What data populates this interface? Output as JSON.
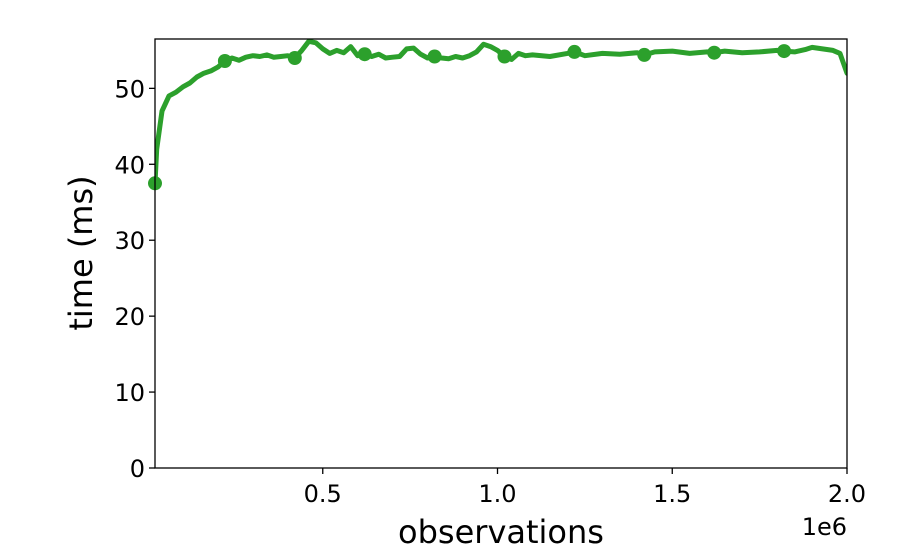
{
  "chart_data": {
    "type": "line",
    "title": "",
    "xlabel": "observations",
    "ylabel": "time (ms)",
    "x_offset_label": "1e6",
    "xlim": [
      20000,
      2000000
    ],
    "ylim": [
      0,
      56.5
    ],
    "grid": false,
    "legend": "none",
    "x_ticks": [
      {
        "value": 500000,
        "label": "0.5"
      },
      {
        "value": 1000000,
        "label": "1.0"
      },
      {
        "value": 1500000,
        "label": "1.5"
      },
      {
        "value": 2000000,
        "label": "2.0"
      }
    ],
    "y_ticks": [
      {
        "value": 0,
        "label": "0"
      },
      {
        "value": 10,
        "label": "10"
      },
      {
        "value": 20,
        "label": "20"
      },
      {
        "value": 30,
        "label": "30"
      },
      {
        "value": 40,
        "label": "40"
      },
      {
        "value": 50,
        "label": "50"
      }
    ],
    "series": [
      {
        "color": "#2ca02c",
        "x": [
          20000,
          25000,
          40000,
          60000,
          80000,
          100000,
          120000,
          140000,
          160000,
          180000,
          200000,
          220000,
          240000,
          260000,
          280000,
          300000,
          320000,
          340000,
          360000,
          380000,
          400000,
          420000,
          440000,
          460000,
          480000,
          500000,
          520000,
          540000,
          560000,
          580000,
          600000,
          620000,
          640000,
          660000,
          680000,
          700000,
          720000,
          740000,
          760000,
          780000,
          800000,
          820000,
          840000,
          860000,
          880000,
          900000,
          920000,
          940000,
          960000,
          980000,
          1000000,
          1020000,
          1040000,
          1060000,
          1080000,
          1100000,
          1150000,
          1200000,
          1220000,
          1250000,
          1300000,
          1350000,
          1400000,
          1420000,
          1450000,
          1500000,
          1550000,
          1600000,
          1620000,
          1650000,
          1700000,
          1750000,
          1800000,
          1820000,
          1850000,
          1880000,
          1900000,
          1930000,
          1960000,
          1980000,
          2000000
        ],
        "y": [
          37.5,
          42,
          47,
          49,
          49.5,
          50.2,
          50.7,
          51.5,
          52,
          52.3,
          52.8,
          53.6,
          54.0,
          53.7,
          54.1,
          54.3,
          54.2,
          54.4,
          54.1,
          54.2,
          54.3,
          54.0,
          55.0,
          56.2,
          56.0,
          55.2,
          54.6,
          55.0,
          54.7,
          55.5,
          54.3,
          54.5,
          54.2,
          54.5,
          54.0,
          54.1,
          54.2,
          55.2,
          55.3,
          54.5,
          54.0,
          54.2,
          54.0,
          53.9,
          54.2,
          54.0,
          54.3,
          54.8,
          55.8,
          55.5,
          55.0,
          54.2,
          53.8,
          54.6,
          54.3,
          54.4,
          54.2,
          54.6,
          54.8,
          54.3,
          54.6,
          54.5,
          54.7,
          54.4,
          54.8,
          54.9,
          54.6,
          54.8,
          54.7,
          54.9,
          54.7,
          54.8,
          55.0,
          54.9,
          54.8,
          55.1,
          55.4,
          55.2,
          55.0,
          54.6,
          52.0
        ]
      }
    ],
    "marker_x": [
      20000,
      220000,
      420000,
      620000,
      820000,
      1020000,
      1220000,
      1420000,
      1620000,
      1820000
    ]
  }
}
